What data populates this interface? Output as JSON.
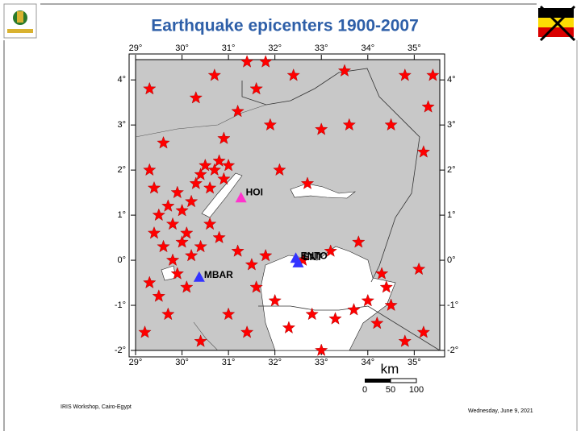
{
  "header": {
    "title": "Earthquake epicenters 1900-2007"
  },
  "map": {
    "xticks": [
      {
        "value": 29,
        "label": "29°"
      },
      {
        "value": 30,
        "label": "30°"
      },
      {
        "value": 31,
        "label": "31°"
      },
      {
        "value": 32,
        "label": "32°"
      },
      {
        "value": 33,
        "label": "33°"
      },
      {
        "value": 34,
        "label": "34°"
      },
      {
        "value": 35,
        "label": "35°"
      }
    ],
    "yticks": [
      {
        "value": -2,
        "label": "-2°"
      },
      {
        "value": -1,
        "label": "-1°"
      },
      {
        "value": 0,
        "label": "0°"
      },
      {
        "value": 1,
        "label": "1°"
      },
      {
        "value": 2,
        "label": "2°"
      },
      {
        "value": 3,
        "label": "3°"
      },
      {
        "value": 4,
        "label": "4°"
      }
    ],
    "xlim": [
      29,
      35.55
    ],
    "ylim": [
      -2,
      4.45
    ],
    "stations": [
      {
        "label": "HOI",
        "lon": 31.27,
        "lat": 1.39,
        "color": "#ff33cc"
      },
      {
        "label": "ENTO",
        "lon": 32.45,
        "lat": 0.05,
        "color": "#3333ff"
      },
      {
        "label": "ENT",
        "lon": 32.5,
        "lat": -0.05,
        "color": "#3333ff"
      },
      {
        "label": "MBAR",
        "lon": 30.37,
        "lat": -0.37,
        "color": "#3333ff"
      }
    ],
    "epicenter_color": "#ff0000",
    "epicenters": [
      [
        29.5,
        1.0
      ],
      [
        29.7,
        1.2
      ],
      [
        29.8,
        0.8
      ],
      [
        29.9,
        1.5
      ],
      [
        30.0,
        1.1
      ],
      [
        30.1,
        0.6
      ],
      [
        30.2,
        1.3
      ],
      [
        30.3,
        1.7
      ],
      [
        30.4,
        1.9
      ],
      [
        30.5,
        2.1
      ],
      [
        30.6,
        1.6
      ],
      [
        30.7,
        2.0
      ],
      [
        30.8,
        2.2
      ],
      [
        30.9,
        1.8
      ],
      [
        31.0,
        2.1
      ],
      [
        29.6,
        0.3
      ],
      [
        29.8,
        0.0
      ],
      [
        29.9,
        -0.3
      ],
      [
        30.0,
        0.4
      ],
      [
        30.2,
        0.1
      ],
      [
        29.4,
        0.6
      ],
      [
        29.3,
        -0.5
      ],
      [
        29.5,
        -0.8
      ],
      [
        29.7,
        -1.2
      ],
      [
        29.2,
        -1.6
      ],
      [
        29.4,
        1.6
      ],
      [
        29.3,
        2.0
      ],
      [
        30.1,
        -0.6
      ],
      [
        30.4,
        0.3
      ],
      [
        30.6,
        0.8
      ],
      [
        30.8,
        0.5
      ],
      [
        31.2,
        0.2
      ],
      [
        31.5,
        -0.1
      ],
      [
        31.8,
        0.1
      ],
      [
        31.6,
        -0.6
      ],
      [
        32.0,
        -0.9
      ],
      [
        32.3,
        -1.5
      ],
      [
        32.8,
        -1.2
      ],
      [
        33.3,
        -1.3
      ],
      [
        33.7,
        -1.1
      ],
      [
        34.2,
        -1.4
      ],
      [
        34.5,
        -1.0
      ],
      [
        34.8,
        -1.8
      ],
      [
        34.4,
        -0.6
      ],
      [
        34.3,
        -0.3
      ],
      [
        33.8,
        0.4
      ],
      [
        33.2,
        0.2
      ],
      [
        32.6,
        0.0
      ],
      [
        32.1,
        2.0
      ],
      [
        32.7,
        1.7
      ],
      [
        33.0,
        2.9
      ],
      [
        33.6,
        3.0
      ],
      [
        34.5,
        3.0
      ],
      [
        35.3,
        3.4
      ],
      [
        35.4,
        4.1
      ],
      [
        34.8,
        4.1
      ],
      [
        33.5,
        4.2
      ],
      [
        32.4,
        4.1
      ],
      [
        31.8,
        4.4
      ],
      [
        31.4,
        4.4
      ],
      [
        31.6,
        3.8
      ],
      [
        30.7,
        4.1
      ],
      [
        30.3,
        3.6
      ],
      [
        31.2,
        3.3
      ],
      [
        31.9,
        3.0
      ],
      [
        30.9,
        2.7
      ],
      [
        29.6,
        2.6
      ],
      [
        29.3,
        3.8
      ],
      [
        35.2,
        2.4
      ],
      [
        35.1,
        -0.2
      ],
      [
        35.2,
        -1.6
      ],
      [
        34.0,
        -0.9
      ],
      [
        33.0,
        -2.0
      ],
      [
        30.4,
        -1.8
      ],
      [
        31.0,
        -1.2
      ],
      [
        31.4,
        -1.6
      ]
    ],
    "scale_bar": {
      "unit": "km",
      "labels": [
        "0",
        "50",
        "100"
      ]
    }
  },
  "footer": {
    "left": "IRIS Workshop, Cairo-Egypt",
    "right": "Wednesday, June 9, 2021"
  }
}
